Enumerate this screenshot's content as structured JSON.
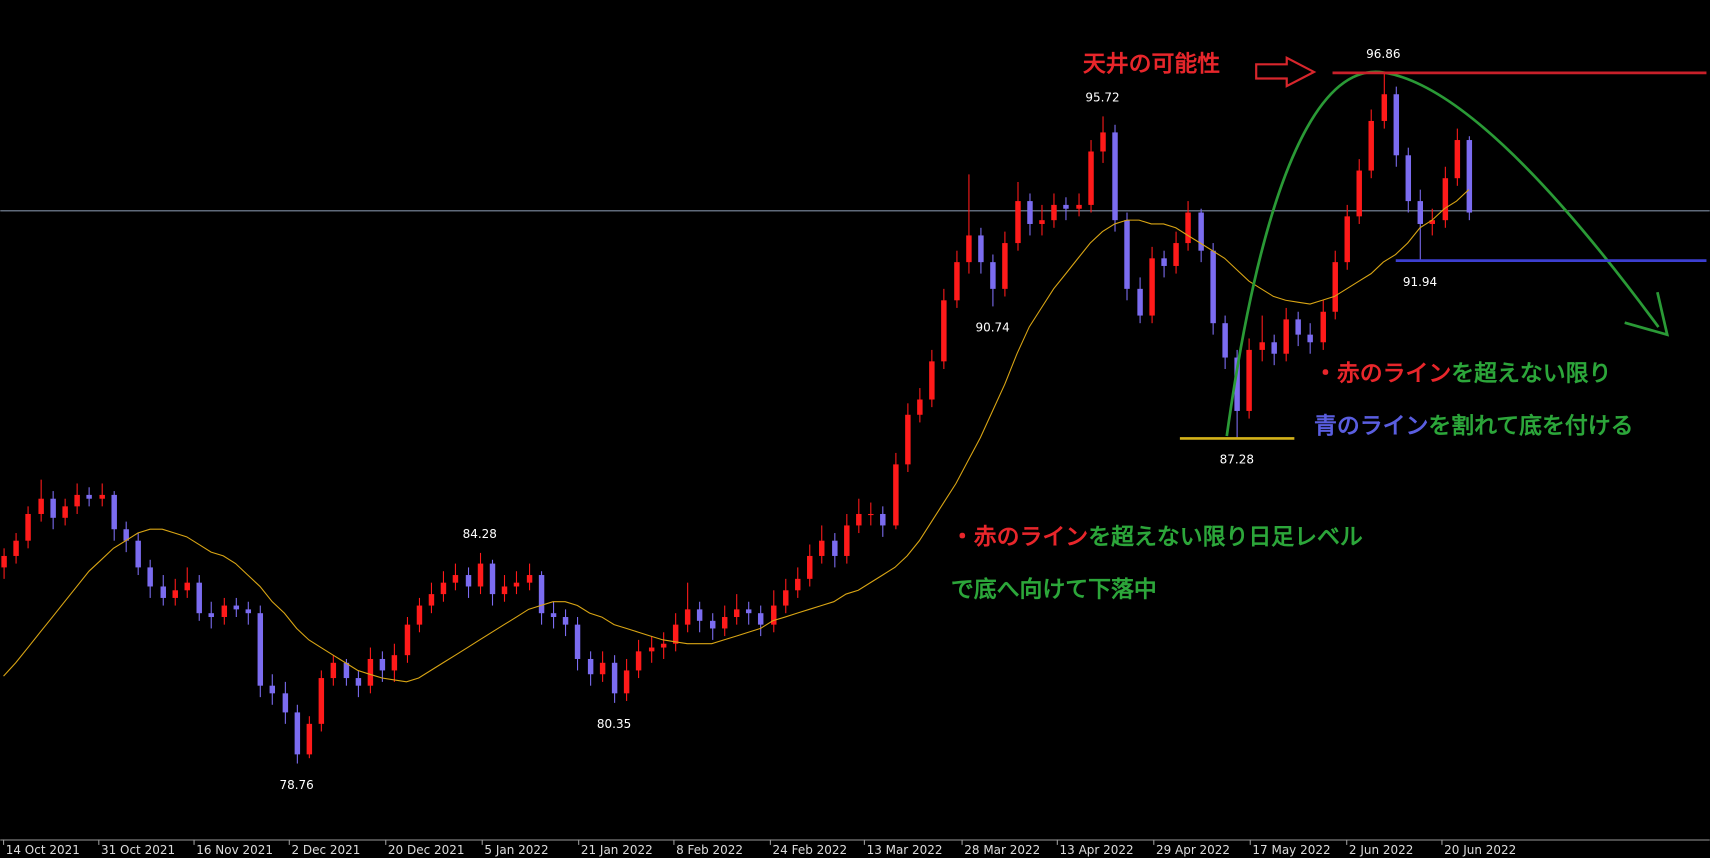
{
  "chart_data": {
    "type": "candlestick",
    "up_color": "#ff1a1a",
    "down_color": "#7b6cf0",
    "xlim": [
      -0.27,
      139.73
    ],
    "ylim": [
      76.77,
      98.77
    ],
    "xticks": [
      {
        "value": 0,
        "label": "14 Oct 2021"
      },
      {
        "value": 7.8,
        "label": "31 Oct 2021"
      },
      {
        "value": 15.6,
        "label": "16 Nov 2021"
      },
      {
        "value": 23.4,
        "label": "2 Dec 2021"
      },
      {
        "value": 31.3,
        "label": "20 Dec 2021"
      },
      {
        "value": 39.2,
        "label": "5 Jan 2022"
      },
      {
        "value": 47.1,
        "label": "21 Jan 2022"
      },
      {
        "value": 54.9,
        "label": "8 Feb 2022"
      },
      {
        "value": 62.8,
        "label": "24 Feb 2022"
      },
      {
        "value": 70.5,
        "label": "13 Mar 2022"
      },
      {
        "value": 78.5,
        "label": "28 Mar 2022"
      },
      {
        "value": 86.3,
        "label": "13 Apr 2022"
      },
      {
        "value": 94.2,
        "label": "29 Apr 2022"
      },
      {
        "value": 102.1,
        "label": "17 May 2022"
      },
      {
        "value": 110,
        "label": "2 Jun 2022"
      },
      {
        "value": 117.8,
        "label": "20 Jun 2022"
      }
    ],
    "ohlc": [
      [
        83.9,
        84.4,
        83.6,
        84.2
      ],
      [
        84.2,
        84.8,
        84.0,
        84.6
      ],
      [
        84.6,
        85.5,
        84.4,
        85.3
      ],
      [
        85.3,
        86.2,
        85.1,
        85.7
      ],
      [
        85.7,
        85.9,
        84.9,
        85.2
      ],
      [
        85.2,
        85.7,
        85.0,
        85.5
      ],
      [
        85.5,
        86.1,
        85.3,
        85.8
      ],
      [
        85.8,
        86.0,
        85.5,
        85.7
      ],
      [
        85.7,
        86.1,
        85.5,
        85.8
      ],
      [
        85.8,
        85.9,
        84.6,
        84.9
      ],
      [
        84.9,
        85.1,
        84.3,
        84.6
      ],
      [
        84.6,
        84.8,
        83.7,
        83.9
      ],
      [
        83.9,
        84.1,
        83.1,
        83.4
      ],
      [
        83.4,
        83.7,
        82.9,
        83.1
      ],
      [
        83.1,
        83.6,
        82.9,
        83.3
      ],
      [
        83.3,
        83.9,
        83.1,
        83.5
      ],
      [
        83.5,
        83.7,
        82.5,
        82.7
      ],
      [
        82.7,
        83.0,
        82.3,
        82.6
      ],
      [
        82.6,
        83.1,
        82.4,
        82.9
      ],
      [
        82.9,
        83.1,
        82.6,
        82.8
      ],
      [
        82.8,
        83.0,
        82.4,
        82.7
      ],
      [
        82.7,
        82.9,
        80.5,
        80.8
      ],
      [
        80.8,
        81.1,
        80.3,
        80.6
      ],
      [
        80.6,
        80.9,
        79.8,
        80.1
      ],
      [
        80.1,
        80.3,
        78.76,
        79.0
      ],
      [
        79.0,
        80.0,
        78.9,
        79.8
      ],
      [
        79.8,
        81.2,
        79.6,
        81.0
      ],
      [
        81.0,
        81.6,
        80.8,
        81.4
      ],
      [
        81.4,
        81.5,
        80.8,
        81.0
      ],
      [
        81.0,
        81.2,
        80.5,
        80.8
      ],
      [
        80.8,
        81.8,
        80.6,
        81.5
      ],
      [
        81.5,
        81.7,
        80.9,
        81.2
      ],
      [
        81.2,
        81.9,
        80.9,
        81.6
      ],
      [
        81.6,
        82.6,
        81.4,
        82.4
      ],
      [
        82.4,
        83.1,
        82.2,
        82.9
      ],
      [
        82.9,
        83.5,
        82.7,
        83.2
      ],
      [
        83.2,
        83.8,
        83.0,
        83.5
      ],
      [
        83.5,
        84.0,
        83.3,
        83.7
      ],
      [
        83.7,
        83.9,
        83.1,
        83.4
      ],
      [
        83.4,
        84.28,
        83.2,
        84.0
      ],
      [
        84.0,
        84.1,
        82.9,
        83.2
      ],
      [
        83.2,
        83.7,
        83.0,
        83.4
      ],
      [
        83.4,
        83.8,
        83.2,
        83.5
      ],
      [
        83.5,
        84.0,
        83.3,
        83.7
      ],
      [
        83.7,
        83.8,
        82.4,
        82.7
      ],
      [
        82.7,
        83.0,
        82.3,
        82.6
      ],
      [
        82.6,
        82.8,
        82.1,
        82.4
      ],
      [
        82.4,
        82.6,
        81.2,
        81.5
      ],
      [
        81.5,
        81.7,
        80.8,
        81.1
      ],
      [
        81.1,
        81.7,
        80.9,
        81.4
      ],
      [
        81.4,
        81.6,
        80.35,
        80.6
      ],
      [
        80.6,
        81.5,
        80.4,
        81.2
      ],
      [
        81.2,
        82.0,
        81.0,
        81.7
      ],
      [
        81.7,
        82.1,
        81.4,
        81.8
      ],
      [
        81.8,
        82.2,
        81.5,
        81.9
      ],
      [
        81.9,
        82.7,
        81.7,
        82.4
      ],
      [
        82.4,
        83.5,
        82.2,
        82.8
      ],
      [
        82.8,
        83.0,
        82.2,
        82.5
      ],
      [
        82.5,
        82.7,
        82.0,
        82.3
      ],
      [
        82.3,
        82.9,
        82.1,
        82.6
      ],
      [
        82.6,
        83.2,
        82.4,
        82.8
      ],
      [
        82.8,
        83.0,
        82.4,
        82.7
      ],
      [
        82.7,
        82.9,
        82.1,
        82.4
      ],
      [
        82.4,
        83.3,
        82.2,
        82.9
      ],
      [
        82.9,
        83.6,
        82.7,
        83.3
      ],
      [
        83.3,
        83.9,
        83.1,
        83.6
      ],
      [
        83.6,
        84.5,
        83.4,
        84.2
      ],
      [
        84.2,
        85.0,
        84.0,
        84.6
      ],
      [
        84.6,
        84.8,
        83.9,
        84.2
      ],
      [
        84.2,
        85.3,
        84.0,
        85.0
      ],
      [
        85.0,
        85.7,
        84.8,
        85.3
      ],
      [
        85.3,
        85.6,
        85.0,
        85.3
      ],
      [
        85.3,
        85.5,
        84.7,
        85.0
      ],
      [
        85.0,
        86.9,
        84.9,
        86.6
      ],
      [
        86.6,
        88.2,
        86.4,
        87.9
      ],
      [
        87.9,
        88.6,
        87.7,
        88.3
      ],
      [
        88.3,
        89.6,
        88.1,
        89.3
      ],
      [
        89.3,
        91.2,
        89.1,
        90.9
      ],
      [
        90.9,
        92.2,
        90.7,
        91.9
      ],
      [
        91.9,
        94.2,
        91.6,
        92.6
      ],
      [
        92.6,
        92.8,
        91.6,
        91.9
      ],
      [
        91.9,
        92.1,
        90.74,
        91.2
      ],
      [
        91.2,
        92.7,
        91.0,
        92.4
      ],
      [
        92.4,
        94.0,
        92.2,
        93.5
      ],
      [
        93.5,
        93.7,
        92.6,
        92.9
      ],
      [
        92.9,
        93.4,
        92.6,
        93.0
      ],
      [
        93.0,
        93.7,
        92.8,
        93.4
      ],
      [
        93.4,
        93.6,
        93.0,
        93.3
      ],
      [
        93.3,
        93.7,
        93.1,
        93.4
      ],
      [
        93.4,
        95.1,
        93.2,
        94.8
      ],
      [
        94.8,
        95.72,
        94.5,
        95.3
      ],
      [
        95.3,
        95.5,
        92.7,
        93.0
      ],
      [
        93.0,
        93.2,
        90.9,
        91.2
      ],
      [
        91.2,
        91.5,
        90.3,
        90.5
      ],
      [
        90.5,
        92.3,
        90.3,
        92.0
      ],
      [
        92.0,
        92.2,
        91.5,
        91.8
      ],
      [
        91.8,
        92.7,
        91.6,
        92.4
      ],
      [
        92.4,
        93.5,
        92.2,
        93.2
      ],
      [
        93.2,
        93.3,
        91.9,
        92.2
      ],
      [
        92.2,
        92.4,
        90.0,
        90.3
      ],
      [
        90.3,
        90.5,
        89.1,
        89.4
      ],
      [
        89.4,
        89.6,
        87.28,
        88.0
      ],
      [
        88.0,
        89.9,
        87.8,
        89.6
      ],
      [
        89.6,
        90.5,
        89.3,
        89.8
      ],
      [
        89.8,
        90.0,
        89.2,
        89.5
      ],
      [
        89.5,
        90.7,
        89.3,
        90.4
      ],
      [
        90.4,
        90.6,
        89.7,
        90.0
      ],
      [
        90.0,
        90.3,
        89.5,
        89.8
      ],
      [
        89.8,
        90.9,
        89.6,
        90.6
      ],
      [
        90.6,
        92.2,
        90.4,
        91.9
      ],
      [
        91.9,
        93.4,
        91.7,
        93.1
      ],
      [
        93.1,
        94.6,
        92.9,
        94.3
      ],
      [
        94.3,
        95.9,
        94.1,
        95.6
      ],
      [
        95.6,
        96.86,
        95.4,
        96.3
      ],
      [
        96.3,
        96.5,
        94.4,
        94.7
      ],
      [
        94.7,
        94.9,
        93.2,
        93.5
      ],
      [
        93.5,
        93.8,
        91.94,
        92.9
      ],
      [
        92.9,
        93.3,
        92.6,
        93.0
      ],
      [
        93.0,
        94.4,
        92.8,
        94.1
      ],
      [
        94.1,
        95.4,
        93.9,
        95.1
      ],
      [
        95.1,
        95.2,
        93.0,
        93.2
      ]
    ],
    "moving_average": {
      "color": "#d9a514",
      "values": [
        81.05,
        81.4,
        81.8,
        82.2,
        82.6,
        83.0,
        83.4,
        83.8,
        84.1,
        84.4,
        84.6,
        84.8,
        84.9,
        84.9,
        84.8,
        84.7,
        84.5,
        84.3,
        84.2,
        84.0,
        83.7,
        83.4,
        83.0,
        82.7,
        82.3,
        82.0,
        81.8,
        81.6,
        81.4,
        81.2,
        81.1,
        81.0,
        80.95,
        80.9,
        81.0,
        81.2,
        81.4,
        81.6,
        81.8,
        82.0,
        82.2,
        82.4,
        82.6,
        82.8,
        82.9,
        83.0,
        83.0,
        82.9,
        82.7,
        82.6,
        82.4,
        82.3,
        82.2,
        82.1,
        82.0,
        81.95,
        81.9,
        81.9,
        81.9,
        82.0,
        82.1,
        82.2,
        82.3,
        82.5,
        82.6,
        82.7,
        82.8,
        82.9,
        83.0,
        83.2,
        83.3,
        83.5,
        83.7,
        83.9,
        84.2,
        84.6,
        85.1,
        85.6,
        86.1,
        86.7,
        87.3,
        88.0,
        88.7,
        89.5,
        90.2,
        90.7,
        91.2,
        91.6,
        92.0,
        92.4,
        92.7,
        92.9,
        93.0,
        93.0,
        92.9,
        92.9,
        92.8,
        92.6,
        92.4,
        92.2,
        92.0,
        91.7,
        91.4,
        91.2,
        91.0,
        90.9,
        90.85,
        90.8,
        90.9,
        91.0,
        91.2,
        91.4,
        91.6,
        91.9,
        92.1,
        92.4,
        92.8,
        93.0,
        93.3,
        93.5,
        93.8
      ]
    },
    "price_line": {
      "value": 93.26,
      "color": "#7f8ea3"
    },
    "extreme_labels": [
      96.86,
      95.72,
      91.94,
      90.74,
      87.28,
      84.28,
      80.35,
      78.76
    ],
    "level_lines": [
      {
        "level": 96.86,
        "color": "#c8202a"
      },
      {
        "level": 91.94,
        "color": "#3c3fd0"
      },
      {
        "level": 87.28,
        "color": "#d4b21a"
      }
    ],
    "annotations": [
      {
        "parts": [
          {
            "text": "天井の可能性",
            "color": "#e8262b"
          }
        ]
      },
      {
        "parts": [
          {
            "text": "・赤のライン",
            "color": "#e8262b"
          },
          {
            "text": "を超えない限り",
            "color": "#2ca63a"
          }
        ]
      },
      {
        "parts": [
          {
            "text": "青のライン",
            "color": "#5a5ee0"
          },
          {
            "text": "を割れて底を付ける",
            "color": "#2ca63a"
          }
        ]
      },
      {
        "parts": [
          {
            "text": "・赤のライン",
            "color": "#e8262b"
          },
          {
            "text": "を超えない限り日足レベル",
            "color": "#2ca63a"
          }
        ]
      },
      {
        "parts": [
          {
            "text": "で底へ向けて下落中",
            "color": "#2ca63a"
          }
        ]
      }
    ]
  }
}
